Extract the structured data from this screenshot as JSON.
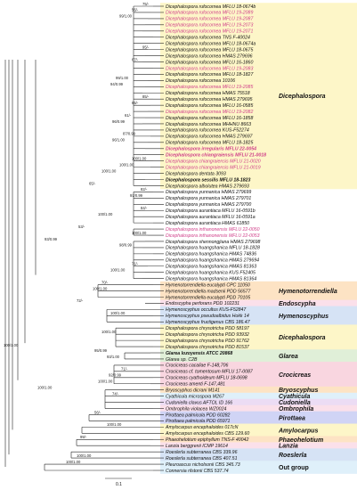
{
  "taxa": [
    {
      "name": "Dicephalospora rufocornea MFLU 18-0674b",
      "style": "normal"
    },
    {
      "name": "Dicephalospora rufocornea MFLU 19-2089",
      "style": "hl"
    },
    {
      "name": "Dicephalospora rufocornea MFLU 19-2087",
      "style": "hl"
    },
    {
      "name": "Dicephalospora rufocornea MFLU 19-2073",
      "style": "hl"
    },
    {
      "name": "Dicephalospora rufocornea MFLU 19-2071",
      "style": "hl"
    },
    {
      "name": "Dicephalospora rufocornea TNS F-40024",
      "style": "normal"
    },
    {
      "name": "Dicephalospora rufocornea MFLU 18-0674a",
      "style": "normal"
    },
    {
      "name": "Dicephalospora rufocornea MFLU 18-0675",
      "style": "normal"
    },
    {
      "name": "Dicephalospora rufocornea HMAS 279696",
      "style": "normal"
    },
    {
      "name": "Dicephalospora rufocornea MFLU 16-1860",
      "style": "normal"
    },
    {
      "name": "Dicephalospora rufocornea MFLU 19-2083",
      "style": "hl"
    },
    {
      "name": "Dicephalospora rufocornea MFLU 18-1827",
      "style": "normal"
    },
    {
      "name": "Dicephalospora rufocornea 10106",
      "style": "normal"
    },
    {
      "name": "Dicephalospora rufocornea MFLU 19-2085",
      "style": "hl"
    },
    {
      "name": "Dicephalospora rufocornea HMAS 75518",
      "style": "normal"
    },
    {
      "name": "Dicephalospora rufocornea HMAS 279695",
      "style": "normal"
    },
    {
      "name": "Dicephalospora rufocornea MFLU 16-0585",
      "style": "normal"
    },
    {
      "name": "Dicephalospora rufocornea MFLU 19-2082",
      "style": "hl"
    },
    {
      "name": "Dicephalospora rufocornea MFLU 16-1858",
      "style": "normal"
    },
    {
      "name": "Dicephalospora rufocornea MHHNU 8663",
      "style": "normal"
    },
    {
      "name": "Dicephalospora rufocornea KUS-F52274",
      "style": "normal"
    },
    {
      "name": "Dicephalospora rufocornea HMAS 279697",
      "style": "normal"
    },
    {
      "name": "Dicephalospora rufocornea MFLU 18-1825",
      "style": "normal"
    },
    {
      "name": "Dicephalospora irregularis MFLU 22-0054",
      "style": "hlbold"
    },
    {
      "name": "Dicephalospora chiangraiensis MFLU 21-0018",
      "style": "hlbold"
    },
    {
      "name": "Dicephalospora chiangraiensis MFLU 21-0020",
      "style": "hl"
    },
    {
      "name": "Dicephalospora chiangraiensis MFLU 21-0019",
      "style": "hl"
    },
    {
      "name": "Dicephalospora dentata 3093",
      "style": "normal"
    },
    {
      "name": "Dicephalospora sessilis MFLU 18-1823",
      "style": "bold"
    },
    {
      "name": "Dicephalospora albolutea HMAS 279693",
      "style": "normal"
    },
    {
      "name": "Dicephalospora yunnanica HMAS 279699",
      "style": "normal"
    },
    {
      "name": "Dicephalospora yunnanica HMAS 279701",
      "style": "normal"
    },
    {
      "name": "Dicephalospora yunnanica HMAS 279700",
      "style": "normal"
    },
    {
      "name": "Dicephalospora aurantiaca MFLU 16-0591b",
      "style": "normal"
    },
    {
      "name": "Dicephalospora aurantiaca MFLU 16-0591a",
      "style": "normal"
    },
    {
      "name": "Dicephalospora aurantiaca HMAS 61850",
      "style": "normal"
    },
    {
      "name": "Dicephalospora inthanonensis MFLU 22-0050",
      "style": "hl"
    },
    {
      "name": "Dicephalospora inthanonensis MFLU 22-0053",
      "style": "hl"
    },
    {
      "name": "Dicephalospora shennongjiana HMAS 279698",
      "style": "normal"
    },
    {
      "name": "Dicephalospora huangshanica MFLU 18-1828",
      "style": "normal"
    },
    {
      "name": "Dicephalospora huangshanica HMAS 74836",
      "style": "normal"
    },
    {
      "name": "Dicephalospora huangshanica HMAS 279694",
      "style": "normal"
    },
    {
      "name": "Dicephalospora huangshanica HMAS 81363",
      "style": "normal"
    },
    {
      "name": "Dicephalospora huangshanica KUS F52405",
      "style": "normal"
    },
    {
      "name": "Dicephalospora huangshanica HMAS 81364",
      "style": "normal"
    },
    {
      "name": "Hymenotorrendiella eucalypti CPC 11050",
      "style": "normal"
    },
    {
      "name": "Hymenotorrendiella madsenii PDD 56577",
      "style": "normal"
    },
    {
      "name": "Hymenotorrendiella eucalypti PDD 70105",
      "style": "normal"
    },
    {
      "name": "Endoscypha perforans PDD 102231",
      "style": "normal"
    },
    {
      "name": "Hymenoscyphus occultus KUS-F52847",
      "style": "normal"
    },
    {
      "name": "Hymenoscyphus pseudoalbidus Hokk 14",
      "style": "normal"
    },
    {
      "name": "Hymenoscyphus fructigenus CBS 186.47",
      "style": "normal"
    },
    {
      "name": "Dicephalospora chrysotricha PDD 58197",
      "style": "normal"
    },
    {
      "name": "Dicephalospora chrysotricha PDD 93932",
      "style": "normal"
    },
    {
      "name": "Dicephalospora chrysotricha PDD 91762",
      "style": "normal"
    },
    {
      "name": "Dicephalospora chrysotricha PDD 81537",
      "style": "normal"
    },
    {
      "name": "Glarea lozoyensis ATCC 20868",
      "style": "bold"
    },
    {
      "name": "Glarea sp. C2B",
      "style": "normal"
    },
    {
      "name": "Crocicreas cacaliae F-148,706",
      "style": "normal"
    },
    {
      "name": "Crocicreas cf. tomentosum MFLU 17-0087",
      "style": "normal"
    },
    {
      "name": "Crocicreas cyathoideum MFLU 18-0698",
      "style": "normal"
    },
    {
      "name": "Crocicreas amenti F-147,481",
      "style": "normal"
    },
    {
      "name": "Bryoscyphus dicrani M141",
      "style": "normal"
    },
    {
      "name": "Cyathicula microspora M267",
      "style": "normal"
    },
    {
      "name": "Cudoniella clavus AFTOL ID 166",
      "style": "normal"
    },
    {
      "name": "Ombrophila violacea WZ0024",
      "style": "normal"
    },
    {
      "name": "Pirottaea palmicola PDD 60282",
      "style": "normal"
    },
    {
      "name": "Pirottaea palmicola PDD 65971",
      "style": "normal"
    },
    {
      "name": "Amylocarpus encephaloides 017cN",
      "style": "normal"
    },
    {
      "name": "Amylocarpus encephaloides CBS 129.60",
      "style": "normal"
    },
    {
      "name": "Phaeohelotium epiphyllum TNS-F 40042",
      "style": "normal"
    },
    {
      "name": "Lanzia berggrenii ICMP 19614",
      "style": "normal"
    },
    {
      "name": "Roeslerla subterranea CBS 339.96",
      "style": "normal"
    },
    {
      "name": "Roeslerla subterranea CBS 407.51",
      "style": "normal"
    },
    {
      "name": "Pleuroascus nicholsonii CBS 345.73",
      "style": "normal"
    },
    {
      "name": "Connersia rilstonii CBS 537.74",
      "style": "normal"
    }
  ],
  "supports": [
    {
      "text": "75/-",
      "tip": 0,
      "dx": -10
    },
    {
      "text": "56/-",
      "tip": 1,
      "dx": -22
    },
    {
      "text": "99/1.00",
      "tip": 2,
      "dx": -36
    },
    {
      "text": "95/-",
      "tip": 7,
      "dx": -10
    },
    {
      "text": "67/-",
      "tip": 9,
      "dx": -22
    },
    {
      "text": "99/1.00",
      "tip": 12,
      "dx": -40
    },
    {
      "text": "94/0.99",
      "tip": 13,
      "dx": -46
    },
    {
      "text": "85/-",
      "tip": 15,
      "dx": -10
    },
    {
      "text": "65/-",
      "tip": 16,
      "dx": -22
    },
    {
      "text": "61/-",
      "tip": 18,
      "dx": -30
    },
    {
      "text": "96/0.99",
      "tip": 19,
      "dx": -44
    },
    {
      "text": "87/0.99",
      "tip": 21,
      "dx": -32
    },
    {
      "text": "96/1.00",
      "tip": 22,
      "dx": -44
    },
    {
      "text": "100/1.00",
      "tip": 25,
      "dx": -22
    },
    {
      "text": "100/1.00",
      "tip": 26,
      "dx": -36
    },
    {
      "text": "100/1.00",
      "tip": 27,
      "dx": -56
    },
    {
      "text": "65/-",
      "tip": 29,
      "dx": -70
    },
    {
      "text": "82/-",
      "tip": 30,
      "dx": -12
    },
    {
      "text": "91/0.99",
      "tip": 31,
      "dx": -24
    },
    {
      "text": "84/-",
      "tip": 33,
      "dx": -12
    },
    {
      "text": "100/1.00",
      "tip": 34,
      "dx": -60
    },
    {
      "text": "53/-",
      "tip": 36,
      "dx": -82
    },
    {
      "text": "100/1.00",
      "tip": 37,
      "dx": -22
    },
    {
      "text": "93/0.99",
      "tip": 38,
      "dx": -120
    },
    {
      "text": "98/0.99",
      "tip": 39,
      "dx": -36
    },
    {
      "text": "71/-",
      "tip": 42,
      "dx": -22
    },
    {
      "text": "100/1.00",
      "tip": 43,
      "dx": -46
    },
    {
      "text": "70/-",
      "tip": 45,
      "dx": -56
    },
    {
      "text": "100/1.00",
      "tip": 46,
      "dx": -66
    },
    {
      "text": "72/-",
      "tip": 48,
      "dx": -84
    },
    {
      "text": "100/1.00",
      "tip": 50,
      "dx": -46
    },
    {
      "text": "100/1.00",
      "tip": 53,
      "dx": -56
    },
    {
      "text": "93/1.00",
      "tip": 57,
      "dx": -50
    },
    {
      "text": "95/0.99",
      "tip": 56,
      "dx": -64
    },
    {
      "text": "71/-",
      "tip": 59,
      "dx": -34
    },
    {
      "text": "92/0.99",
      "tip": 60,
      "dx": -48
    },
    {
      "text": "100/1.00",
      "tip": 61,
      "dx": -60
    },
    {
      "text": "74/-",
      "tip": 63,
      "dx": -44
    },
    {
      "text": "100/1.00",
      "tip": 62,
      "dx": -128
    },
    {
      "text": "56/-",
      "tip": 66,
      "dx": -64
    },
    {
      "text": "100/1.00",
      "tip": 68,
      "dx": -50
    },
    {
      "text": "99/-",
      "tip": 70,
      "dx": -80
    },
    {
      "text": "100/1.00",
      "tip": 73,
      "dx": -84
    },
    {
      "text": "100/1.00",
      "tip": 74,
      "dx": -96
    }
  ],
  "clades": [
    {
      "name": "Dicephalospora",
      "from": 0,
      "to": 29,
      "color": "#fdf6c8",
      "style": "italic"
    },
    {
      "name": "Hymenotorrendiella",
      "from": 45,
      "to": 47,
      "color": "#fde3c4",
      "style": "italic"
    },
    {
      "name": "Endoscypha",
      "from": 48,
      "to": 48,
      "color": "#fbe0ea",
      "style": "italic"
    },
    {
      "name": "Hymenoscyphus",
      "from": 49,
      "to": 51,
      "color": "#d6e3f5",
      "style": "italic"
    },
    {
      "name": "Dicephalospora",
      "from": 52,
      "to": 55,
      "color": "#fdf6c8",
      "style": "italic"
    },
    {
      "name": "Glarea",
      "from": 56,
      "to": 57,
      "color": "#e0efd8",
      "style": "italic"
    },
    {
      "name": "Crocicreas",
      "from": 58,
      "to": 61,
      "color": "#f9d6e0",
      "style": "italic"
    },
    {
      "name": "Bryoscyphus",
      "from": 62,
      "to": 62,
      "color": "#fde3c4",
      "style": "italic"
    },
    {
      "name": "Cyathicula",
      "from": 63,
      "to": 63,
      "color": "#dff0fa",
      "style": "italic"
    },
    {
      "name": "Cudoniella",
      "from": 64,
      "to": 64,
      "color": "#ecdcf4",
      "style": "italic"
    },
    {
      "name": "Ombrophila",
      "from": 65,
      "to": 65,
      "color": "#fbe0ea",
      "style": "italic"
    },
    {
      "name": "Pirottaea",
      "from": 66,
      "to": 67,
      "color": "#d0d4f5",
      "style": "italic"
    },
    {
      "name": "Amylocarpus",
      "from": 68,
      "to": 69,
      "color": "#fdf6c8",
      "style": "italic"
    },
    {
      "name": "Phaeohelotium",
      "from": 70,
      "to": 70,
      "color": "#fde3c4",
      "style": "italic"
    },
    {
      "name": "Lanzia",
      "from": 71,
      "to": 71,
      "color": "#fbe0ea",
      "style": "italic"
    },
    {
      "name": "Roeslerla",
      "from": 72,
      "to": 73,
      "color": "#d6e3f5",
      "style": "italic"
    },
    {
      "name": "Out group",
      "from": 74,
      "to": 75,
      "color": "#dff0fa",
      "style": "plain"
    }
  ],
  "root_support": "100/1.00",
  "scale": {
    "label": "0.1"
  }
}
